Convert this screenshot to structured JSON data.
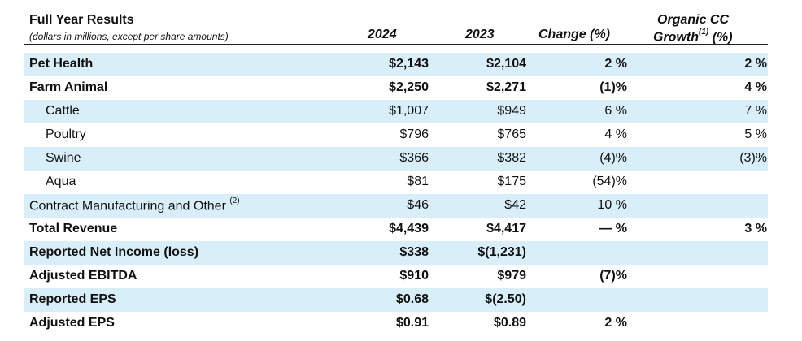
{
  "header": {
    "title": "Full Year Results",
    "subtitle": "(dollars in millions, except per share amounts)",
    "col_2024": "2024",
    "col_2023": "2023",
    "col_change": "Change (%)",
    "col_organic_line1": "Organic CC",
    "col_organic_line2": "Growth",
    "col_organic_note": "(1)",
    "col_organic_unit": "(%)"
  },
  "table": {
    "rows": [
      {
        "label": "Pet Health",
        "y2024": "$2,143",
        "y2023": "$2,104",
        "change": "2 %",
        "organic": "2 %"
      },
      {
        "label": "Farm Animal",
        "y2024": "$2,250",
        "y2023": "$2,271",
        "change": "(1)%",
        "organic": "4 %"
      },
      {
        "label": "Cattle",
        "y2024": "$1,007",
        "y2023": "$949",
        "change": "6 %",
        "organic": "7 %"
      },
      {
        "label": "Poultry",
        "y2024": "$796",
        "y2023": "$765",
        "change": "4 %",
        "organic": "5 %"
      },
      {
        "label": "Swine",
        "y2024": "$366",
        "y2023": "$382",
        "change": "(4)%",
        "organic": "(3)%"
      },
      {
        "label": "Aqua",
        "y2024": "$81",
        "y2023": "$175",
        "change": "(54)%"
      },
      {
        "label": "Contract Manufacturing and Other",
        "note": "(2)",
        "y2024": "$46",
        "y2023": "$42",
        "change": "10 %"
      },
      {
        "label": "Total Revenue",
        "y2024": "$4,439",
        "y2023": "$4,417",
        "change": "— %",
        "organic": "3 %"
      },
      {
        "label": "Reported Net Income (loss)",
        "y2024": "$338",
        "y2023": "$(1,231)"
      },
      {
        "label": "Adjusted EBITDA",
        "y2024": "$910",
        "y2023": "$979",
        "change": "(7)%"
      },
      {
        "label": "Reported EPS",
        "y2024": "$0.68",
        "y2023": "$(2.50)"
      },
      {
        "label": "Adjusted EPS",
        "y2024": "$0.91",
        "y2023": "$0.89",
        "change": "2 %"
      }
    ]
  }
}
